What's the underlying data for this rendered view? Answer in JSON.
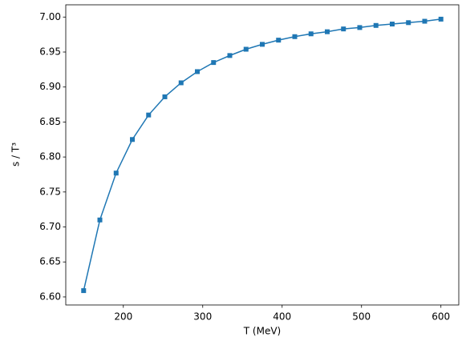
{
  "chart_data": {
    "type": "line",
    "xlabel": "T (MeV)",
    "ylabel": "s / T³",
    "x": [
      150,
      170.45,
      190.91,
      211.36,
      231.82,
      252.27,
      272.73,
      293.18,
      313.64,
      334.09,
      354.55,
      375,
      395.45,
      415.91,
      436.36,
      456.82,
      477.27,
      497.73,
      518.18,
      538.64,
      559.09,
      579.55,
      600
    ],
    "series": [
      {
        "name": "s / T³",
        "color": "#1f77b4",
        "values": [
          6.609,
          6.71,
          6.777,
          6.825,
          6.86,
          6.886,
          6.906,
          6.922,
          6.935,
          6.945,
          6.954,
          6.961,
          6.967,
          6.972,
          6.976,
          6.979,
          6.983,
          6.985,
          6.988,
          6.99,
          6.992,
          6.994,
          6.997
        ]
      }
    ],
    "xlim": [
      127.5,
      622.5
    ],
    "xticks": [
      200,
      300,
      400,
      500,
      600
    ],
    "ylim": [
      6.5885,
      7.0175
    ],
    "yticks": [
      {
        "value": 6.6,
        "label": "6.60"
      },
      6.65,
      {
        "value": 6.7,
        "label": "6.70"
      },
      6.75,
      {
        "value": 6.8,
        "label": "6.80"
      },
      6.85,
      {
        "value": 6.9,
        "label": "6.90"
      },
      6.95,
      {
        "value": 7.0,
        "label": "7.00"
      }
    ],
    "marker": "square"
  }
}
